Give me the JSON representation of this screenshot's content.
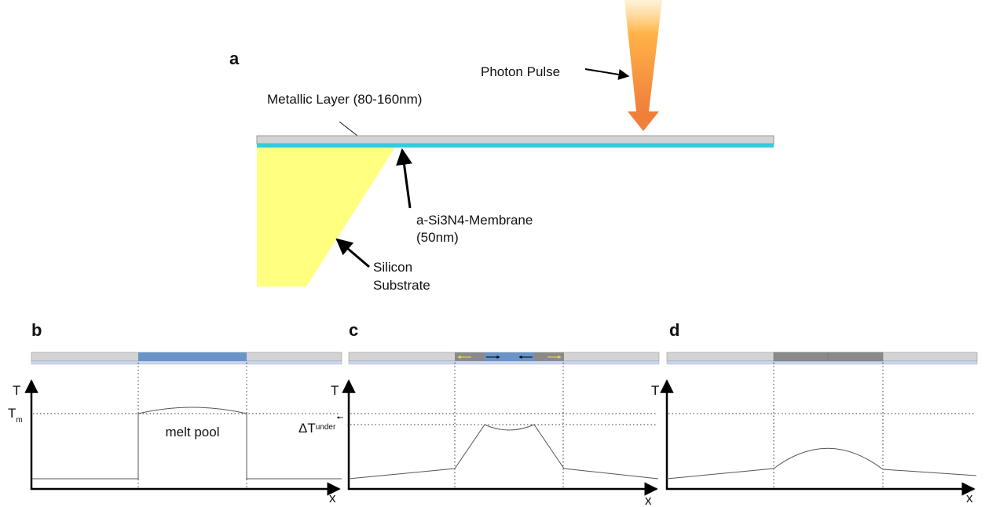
{
  "panel_a": {
    "label": "a",
    "photon_pulse": "Photon Pulse",
    "metallic_layer": "Metallic Layer (80-160nm)",
    "membrane": [
      "a-Si3N4-Membrane",
      "(50nm)"
    ],
    "substrate": [
      "Silicon",
      "Substrate"
    ]
  },
  "panel_b": {
    "label": "b",
    "y_axis": "T",
    "x_axis": "x",
    "melt_temp": {
      "symbol": "T",
      "subscript": "m"
    },
    "region": "melt pool"
  },
  "panel_c": {
    "label": "c",
    "y_axis": "T",
    "x_axis": "x",
    "undercooling": {
      "symbol": "ΔT",
      "subscript": "under"
    }
  },
  "panel_d": {
    "label": "d",
    "y_axis": "T",
    "x_axis": "x"
  }
}
